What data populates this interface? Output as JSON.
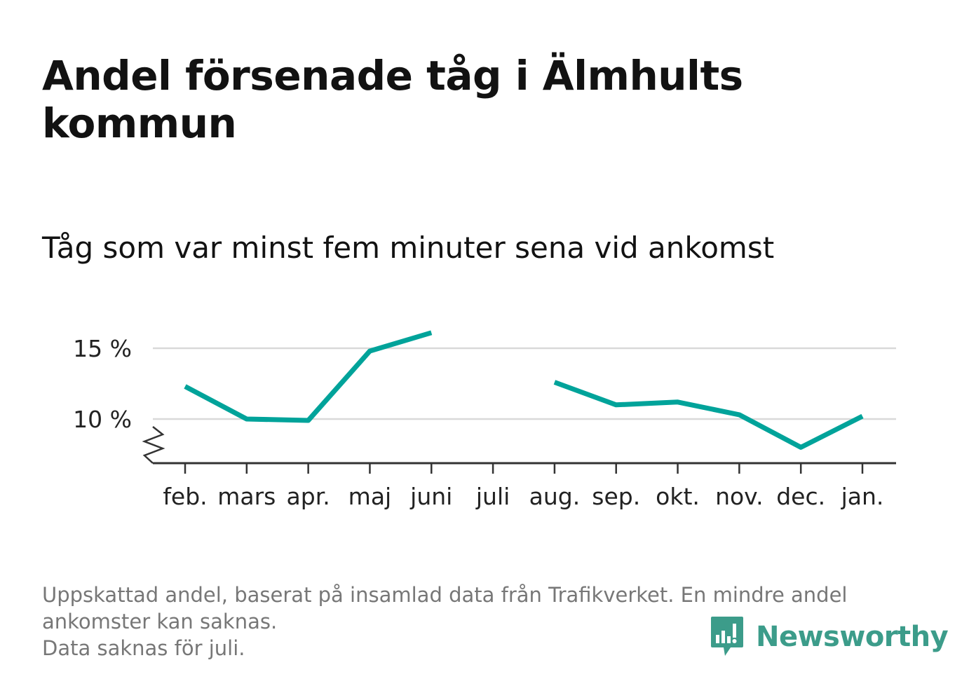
{
  "header": {
    "title": "Andel försenade tåg i Älmhults kommun",
    "subtitle": "Tåg som var minst fem minuter sena vid ankomst"
  },
  "footnote": {
    "lines": [
      "Uppskattad andel, baserat på insamlad data från Trafikverket. En mindre andel",
      "ankomster kan saknas.",
      "Data saknas för juli."
    ]
  },
  "brand": {
    "name": "Newsworthy",
    "color": "#3c9c8a",
    "icon": "chart-speech-bubble-icon"
  },
  "colors": {
    "line": "#00a39a",
    "grid": "#d9d9d9",
    "axis": "#333333"
  },
  "chart_data": {
    "type": "line",
    "title": "Andel försenade tåg i Älmhults kommun",
    "subtitle": "Tåg som var minst fem minuter sena vid ankomst",
    "categories": [
      "feb.",
      "mars",
      "apr.",
      "maj",
      "juni",
      "juli",
      "aug.",
      "sep.",
      "okt.",
      "nov.",
      "dec.",
      "jan."
    ],
    "series": [
      {
        "values": [
          12.3,
          10.0,
          9.9,
          14.8,
          16.1,
          null,
          12.6,
          11.0,
          11.2,
          10.3,
          8.0,
          10.2
        ]
      }
    ],
    "y_ticks": [
      10,
      15
    ],
    "y_tick_labels": [
      "10 %",
      "15 %"
    ],
    "y_axis_break": true,
    "grid": true,
    "legend": "none"
  }
}
